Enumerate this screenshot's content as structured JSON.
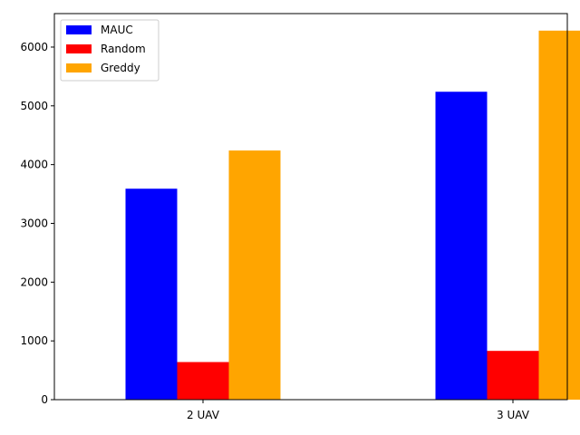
{
  "chart_data": {
    "type": "bar",
    "title": "",
    "xlabel": "",
    "ylabel": "",
    "categories": [
      "2 UAV",
      "3 UAV"
    ],
    "series": [
      {
        "name": "MAUC",
        "color": "#0000ff",
        "values": [
          3590,
          5240
        ]
      },
      {
        "name": "Random",
        "color": "#ff0000",
        "values": [
          640,
          830
        ]
      },
      {
        "name": "Greddy",
        "color": "#ffa500",
        "values": [
          4240,
          6280
        ]
      }
    ],
    "ylim": [
      0,
      6570
    ],
    "yticks": [
      0,
      1000,
      2000,
      3000,
      4000,
      5000,
      6000
    ],
    "grid": false,
    "legend_position": "top-left"
  }
}
